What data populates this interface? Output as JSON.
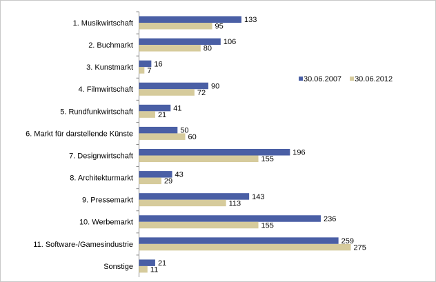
{
  "chart_data": {
    "type": "hbar",
    "categories": [
      "1. Musikwirtschaft",
      "2. Buchmarkt",
      "3. Kunstmarkt",
      "4. Filmwirtschaft",
      "5. Rundfunkwirtschaft",
      "6. Markt für darstellende Künste",
      "7. Designwirtschaft",
      "8. Architekturmarkt",
      "9. Pressemarkt",
      "10. Werbemarkt",
      "11. Software-/Gamesindustrie",
      "Sonstige"
    ],
    "series": [
      {
        "name": "30.06.2007",
        "color": "#4a5fa5",
        "values": [
          133,
          106,
          16,
          90,
          41,
          50,
          196,
          43,
          143,
          236,
          259,
          21
        ]
      },
      {
        "name": "30.06.2012",
        "color": "#d6cb9c",
        "values": [
          95,
          80,
          7,
          72,
          21,
          60,
          155,
          29,
          113,
          155,
          275,
          11
        ]
      }
    ]
  }
}
